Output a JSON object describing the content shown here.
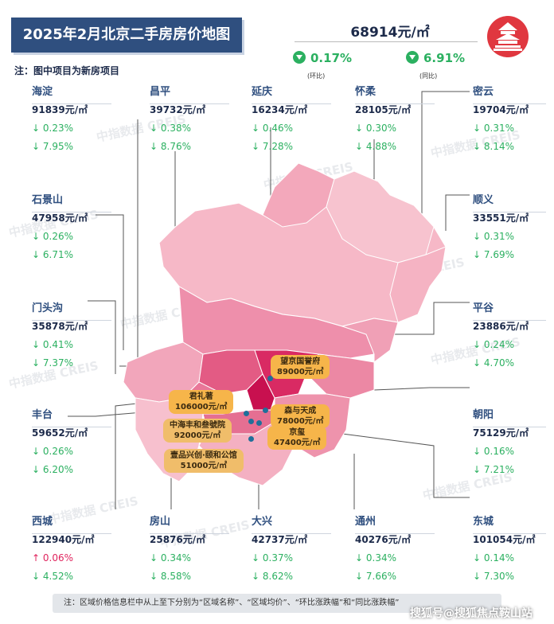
{
  "title": "2025年2月北京二手房房价地图",
  "note": "注：图中项目为新房项目",
  "city_summary": {
    "avg_price": "68914元/㎡",
    "mom_change": "0.17%",
    "mom_label": "(环比)",
    "yoy_change": "6.91%",
    "yoy_label": "(同比)"
  },
  "districts": [
    {
      "name": "海淀",
      "price": "91839元/㎡",
      "mom": "↓ 0.23%",
      "yoy": "↓ 7.95%"
    },
    {
      "name": "昌平",
      "price": "39732元/㎡",
      "mom": "↓ 0.38%",
      "yoy": "↓ 8.76%"
    },
    {
      "name": "延庆",
      "price": "16234元/㎡",
      "mom": "↓ 0.46%",
      "yoy": "↓ 7.28%"
    },
    {
      "name": "怀柔",
      "price": "28105元/㎡",
      "mom": "↓ 0.30%",
      "yoy": "↓ 4.88%"
    },
    {
      "name": "密云",
      "price": "19704元/㎡",
      "mom": "↓ 0.31%",
      "yoy": "↓ 8.14%"
    },
    {
      "name": "石景山",
      "price": "47958元/㎡",
      "mom": "↓ 0.26%",
      "yoy": "↓ 6.71%"
    },
    {
      "name": "顺义",
      "price": "33551元/㎡",
      "mom": "↓ 0.31%",
      "yoy": "↓ 7.69%"
    },
    {
      "name": "门头沟",
      "price": "35878元/㎡",
      "mom": "↓ 0.41%",
      "yoy": "↓ 7.37%"
    },
    {
      "name": "平谷",
      "price": "23886元/㎡",
      "mom": "↓ 0.24%",
      "yoy": "↓ 4.70%"
    },
    {
      "name": "丰台",
      "price": "59652元/㎡",
      "mom": "↓ 0.26%",
      "yoy": "↓ 6.20%"
    },
    {
      "name": "朝阳",
      "price": "75129元/㎡",
      "mom": "↓ 0.16%",
      "yoy": "↓ 7.21%"
    },
    {
      "name": "西城",
      "price": "122940元/㎡",
      "mom": "↑ 0.06%",
      "yoy": "↓ 4.52%"
    },
    {
      "name": "房山",
      "price": "25876元/㎡",
      "mom": "↓ 0.34%",
      "yoy": "↓ 8.58%"
    },
    {
      "name": "大兴",
      "price": "42737元/㎡",
      "mom": "↓ 0.37%",
      "yoy": "↓ 8.62%"
    },
    {
      "name": "通州",
      "price": "40276元/㎡",
      "mom": "↓ 0.34%",
      "yoy": "↓ 7.66%"
    },
    {
      "name": "东城",
      "price": "101054元/㎡",
      "mom": "↓ 0.14%",
      "yoy": "↓ 7.30%"
    }
  ],
  "projects": [
    {
      "name": "望京国誉府",
      "price": "89000元/㎡"
    },
    {
      "name": "君礼著",
      "price": "106000元/㎡"
    },
    {
      "name": "森与天成",
      "price": "78000元/㎡"
    },
    {
      "name": "中海丰和叁號院",
      "price": "92000元/㎡"
    },
    {
      "name": "京玺",
      "price": "47400元/㎡"
    },
    {
      "name": "壹品兴创·颐和公馆",
      "price": "51000元/㎡"
    }
  ],
  "watermark": "中指数据 CREIS",
  "footer": "注：区域价格信息栏中从上至下分别为“区域名称”、“区域均价”、“环比涨跌幅”和“同比涨跌幅”",
  "source_watermark": "搜狐号@搜狐焦点鞍山站",
  "colors": {
    "title_bg": "#2f4f7f",
    "down": "#2bb060",
    "up": "#e0245e",
    "project": "#f6b54a",
    "core": "#d81b60"
  }
}
